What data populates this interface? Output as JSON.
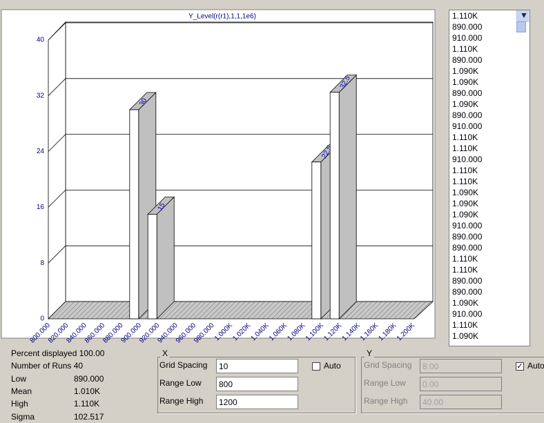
{
  "chart_data": {
    "type": "bar3d",
    "title": "Y_Level(r(r1),1,1,1e6)",
    "x": [
      890,
      910,
      1090,
      1110
    ],
    "values": [
      30,
      15,
      22.5,
      32.5
    ],
    "xlim": [
      800,
      1200
    ],
    "xticks": [
      {
        "value": 800,
        "label": "800.000"
      },
      {
        "value": 820,
        "label": "820.000"
      },
      {
        "value": 840,
        "label": "840.000"
      },
      {
        "value": 860,
        "label": "860.000"
      },
      {
        "value": 880,
        "label": "880.000"
      },
      {
        "value": 900,
        "label": "900.000"
      },
      {
        "value": 920,
        "label": "920.000"
      },
      {
        "value": 940,
        "label": "940.000"
      },
      {
        "value": 960,
        "label": "960.000"
      },
      {
        "value": 980,
        "label": "980.000"
      },
      {
        "value": 1000,
        "label": "1.000K"
      },
      {
        "value": 1020,
        "label": "1.020K"
      },
      {
        "value": 1040,
        "label": "1.040K"
      },
      {
        "value": 1060,
        "label": "1.060K"
      },
      {
        "value": 1080,
        "label": "1.080K"
      },
      {
        "value": 1100,
        "label": "1.100K"
      },
      {
        "value": 1120,
        "label": "1.120K"
      },
      {
        "value": 1140,
        "label": "1.140K"
      },
      {
        "value": 1160,
        "label": "1.160K"
      },
      {
        "value": 1180,
        "label": "1.180K"
      },
      {
        "value": 1200,
        "label": "1.200K"
      }
    ],
    "ylim": [
      0,
      40
    ],
    "yticks": [
      0,
      8,
      16,
      24,
      32,
      40
    ],
    "grid": true,
    "color": "#ffffff",
    "side_color": "#c0c0c0",
    "label_color": "#0000c0"
  },
  "list": [
    "1.110K",
    "890.000",
    "910.000",
    "1.110K",
    "890.000",
    "1.090K",
    "1.090K",
    "890.000",
    "1.090K",
    "890.000",
    "910.000",
    "1.110K",
    "1.110K",
    "910.000",
    "1.110K",
    "1.110K",
    "1.090K",
    "1.090K",
    "1.090K",
    "910.000",
    "890.000",
    "890.000",
    "1.110K",
    "1.110K",
    "890.000",
    "890.000",
    "1.090K",
    "910.000",
    "1.110K",
    "1.090K"
  ],
  "stats": [
    {
      "label": "Percent displayed",
      "value": "100.00"
    },
    {
      "label": "Number of Runs",
      "value": "40"
    },
    {
      "label": "Low",
      "value": "890.000"
    },
    {
      "label": "Mean",
      "value": "1.010K"
    },
    {
      "label": "High",
      "value": "1.110K"
    },
    {
      "label": "Sigma",
      "value": "102.517"
    }
  ],
  "x_panel": {
    "title": "X",
    "grid_spacing_label": "Grid Spacing",
    "grid_spacing": "10",
    "range_low_label": "Range Low",
    "range_low": "800",
    "range_high_label": "Range High",
    "range_high": "1200",
    "auto_label": "Auto"
  },
  "y_panel": {
    "title": "Y",
    "grid_spacing_label": "Grid Spacing",
    "grid_spacing": "8.00",
    "range_low_label": "Range Low",
    "range_low": "0.00",
    "range_high_label": "Range High",
    "range_high": "40.00",
    "auto_label": "Auto"
  }
}
